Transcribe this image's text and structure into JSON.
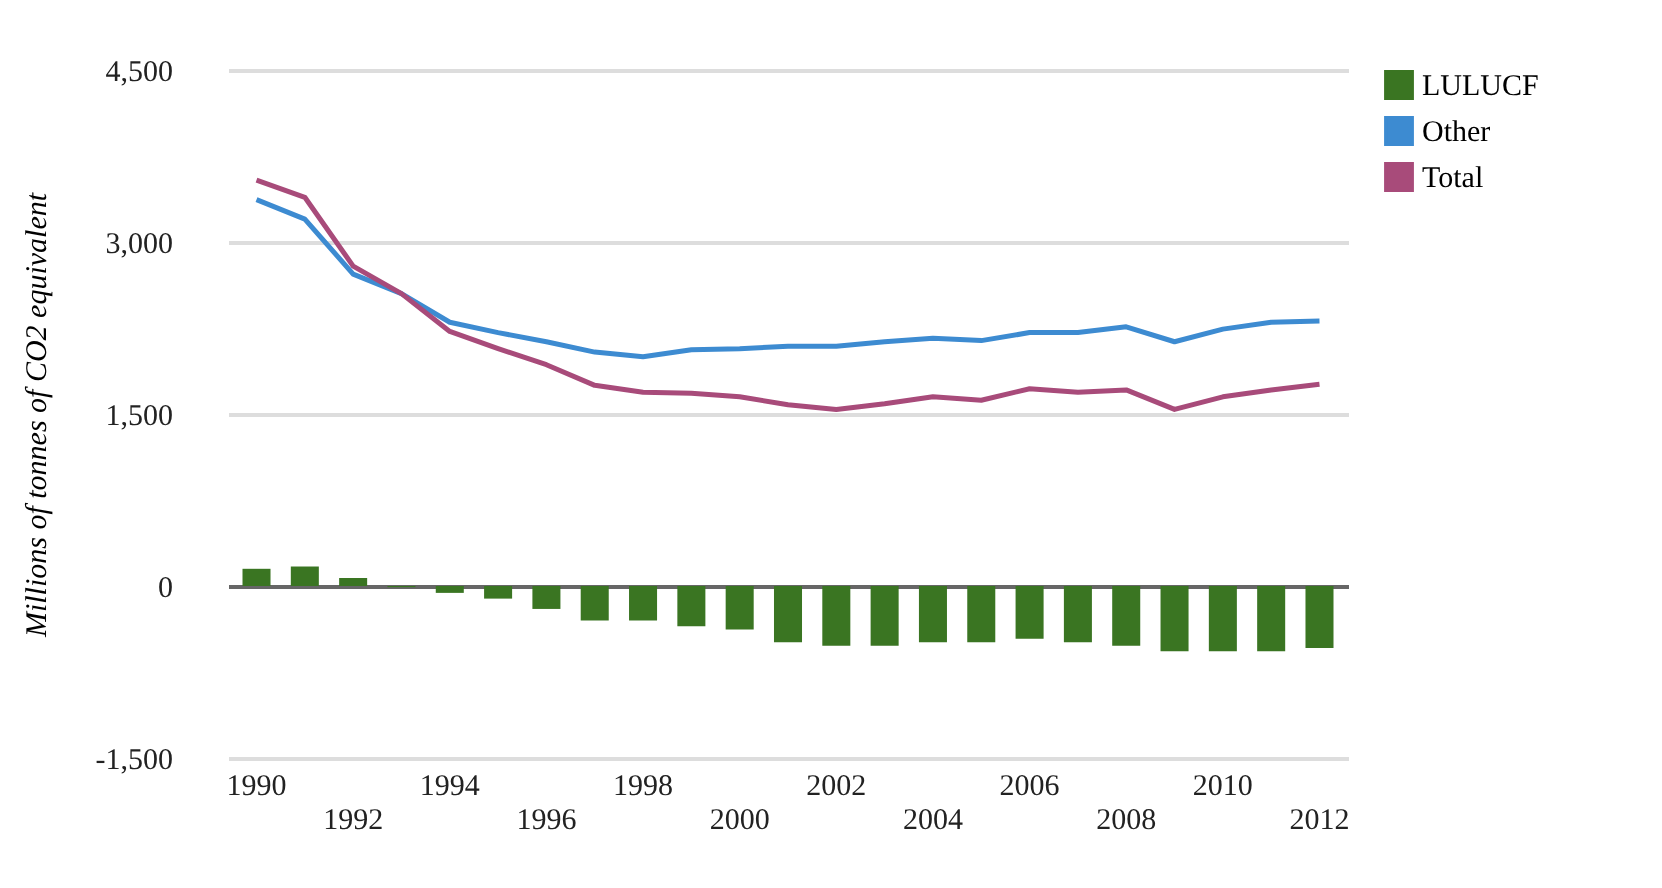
{
  "chart_data": {
    "type": "bar",
    "ylabel": "Millions of tonnes of CO2 equivalent",
    "categories": [
      "1990",
      null,
      "1992",
      null,
      "1994",
      null,
      "1996",
      null,
      "1998",
      null,
      "2000",
      null,
      "2002",
      null,
      "2004",
      null,
      "2006",
      null,
      "2008",
      null,
      "2010",
      null,
      "2012"
    ],
    "series": [
      {
        "name": "LULUCF",
        "color": "#3a7522",
        "values": [
          150,
          170,
          70,
          -10,
          -60,
          -110,
          -200,
          -300,
          -300,
          -350,
          -380,
          -490,
          -520,
          -520,
          -490,
          -490,
          -460,
          -490,
          -520,
          -570,
          -570,
          -570,
          -540
        ]
      },
      {
        "name": "Other",
        "type": "line",
        "color": "#3d8bd1",
        "values": [
          3370,
          3200,
          2720,
          2550,
          2300,
          2210,
          2130,
          2040,
          2000,
          2060,
          2070,
          2090,
          2090,
          2130,
          2160,
          2140,
          2210,
          2210,
          2260,
          2130,
          2240,
          2300,
          2310
        ]
      },
      {
        "name": "Total",
        "type": "line",
        "color": "#a84b7a",
        "values": [
          3540,
          3390,
          2790,
          2550,
          2220,
          2070,
          1930,
          1750,
          1690,
          1680,
          1650,
          1580,
          1540,
          1590,
          1650,
          1620,
          1720,
          1690,
          1710,
          1540,
          1650,
          1710,
          1760
        ]
      }
    ],
    "ylim": [
      -1500,
      4500
    ],
    "yticks": [
      {
        "value": -1500,
        "label": "-1,500"
      },
      0,
      {
        "value": 1500,
        "label": "1,500"
      },
      {
        "value": 3000,
        "label": "3,000"
      },
      {
        "value": 4500,
        "label": "4,500"
      }
    ],
    "grid": "y",
    "legend": "top right"
  }
}
